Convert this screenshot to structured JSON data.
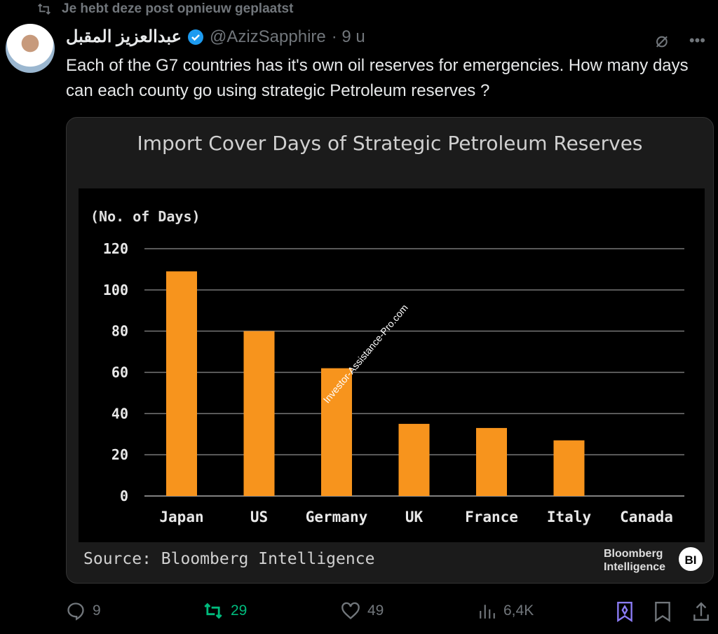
{
  "repost_banner": "Je hebt deze post opnieuw geplaatst",
  "post": {
    "display_name": "عبدالعزيز المقبل",
    "handle": "@AzizSapphire",
    "time": "· 9 u",
    "text": "Each of the G7 countries has it's own oil reserves for emergencies. How many days can each county go using strategic Petroleum reserves  ?"
  },
  "actions": {
    "replies": "9",
    "reposts": "29",
    "likes": "49",
    "views": "6,4K"
  },
  "colors": {
    "bar": "#f7941d",
    "repost": "#00ba7c",
    "grok": "#8b7cf6",
    "verified": "#1d9bf0"
  },
  "chart_data": {
    "type": "bar",
    "title": "Import Cover Days of Strategic Petroleum Reserves",
    "ylabel": "(No. of Days)",
    "xlabel": "",
    "categories": [
      "Japan",
      "US",
      "Germany",
      "UK",
      "France",
      "Italy",
      "Canada"
    ],
    "values": [
      109,
      80,
      62,
      35,
      33,
      27,
      0
    ],
    "ylim": [
      0,
      120
    ],
    "yticks": [
      0,
      20,
      40,
      60,
      80,
      100,
      120
    ],
    "grid": true,
    "source": "Source: Bloomberg Intelligence",
    "watermark": "Investor-Assistance-Pro.com",
    "logo": "Bloomberg Intelligence",
    "logo_badge": "BI"
  }
}
